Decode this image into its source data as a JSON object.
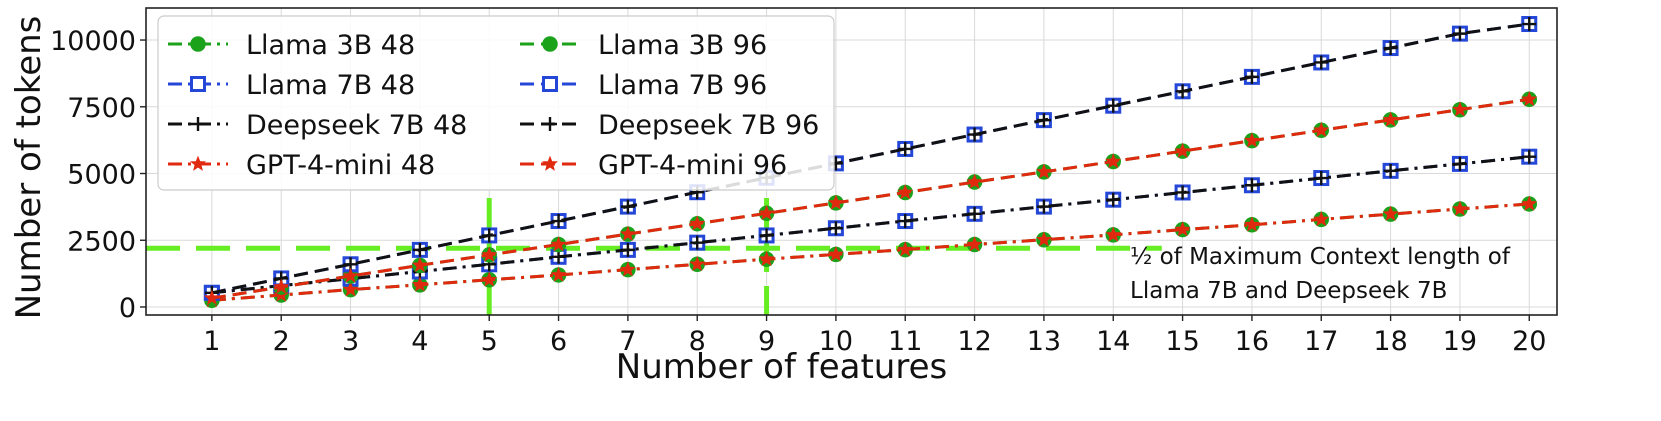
{
  "chart_data": {
    "type": "line",
    "xlabel": "Number of features",
    "ylabel": "Number of tokens",
    "x": [
      1,
      2,
      3,
      4,
      5,
      6,
      7,
      8,
      9,
      10,
      11,
      12,
      13,
      14,
      15,
      16,
      17,
      18,
      19,
      20
    ],
    "xlim": [
      0.05,
      20.4
    ],
    "ylim": [
      -300,
      11200
    ],
    "yticks": [
      0,
      2500,
      5000,
      7500,
      10000
    ],
    "grid": true,
    "legend_placement": "top-left",
    "legend_columns": 2,
    "series": [
      {
        "name": "Llama 3B 48",
        "color": "#1aa21a",
        "linestyle": "dashdot",
        "marker": "circle",
        "values": [
          250,
          450,
          650,
          830,
          1020,
          1200,
          1400,
          1600,
          1790,
          1970,
          2150,
          2340,
          2520,
          2700,
          2900,
          3080,
          3280,
          3480,
          3670,
          3860
        ]
      },
      {
        "name": "Llama 7B 48",
        "color": "#2447d8",
        "linestyle": "dashdot",
        "marker": "square",
        "values": [
          530,
          800,
          1060,
          1330,
          1600,
          1880,
          2140,
          2410,
          2680,
          2950,
          3220,
          3490,
          3760,
          4020,
          4290,
          4560,
          4830,
          5100,
          5360,
          5630
        ]
      },
      {
        "name": "Deepseek 7B 48",
        "color": "#111111",
        "linestyle": "dashdot",
        "marker": "plus",
        "values": [
          530,
          800,
          1060,
          1330,
          1600,
          1880,
          2140,
          2410,
          2680,
          2950,
          3220,
          3490,
          3760,
          4020,
          4290,
          4560,
          4830,
          5100,
          5360,
          5630
        ]
      },
      {
        "name": "GPT-4-mini 48",
        "color": "#e02a10",
        "linestyle": "dashdot",
        "marker": "star",
        "values": [
          250,
          450,
          650,
          830,
          1020,
          1200,
          1400,
          1600,
          1790,
          1970,
          2150,
          2340,
          2520,
          2700,
          2900,
          3080,
          3280,
          3480,
          3670,
          3860
        ]
      },
      {
        "name": "Llama 3B 96",
        "color": "#1aa21a",
        "linestyle": "dashed",
        "marker": "circle",
        "values": [
          330,
          750,
          1160,
          1560,
          1950,
          2340,
          2730,
          3120,
          3510,
          3900,
          4290,
          4680,
          5060,
          5450,
          5840,
          6230,
          6620,
          7010,
          7390,
          7780
        ]
      },
      {
        "name": "Llama 7B 96",
        "color": "#2447d8",
        "linestyle": "dashed",
        "marker": "square",
        "values": [
          530,
          1070,
          1600,
          2140,
          2680,
          3220,
          3760,
          4300,
          4840,
          5380,
          5920,
          6460,
          7000,
          7540,
          8080,
          8620,
          9160,
          9700,
          10240,
          10600
        ]
      },
      {
        "name": "Deepseek 7B 96",
        "color": "#111111",
        "linestyle": "dashed",
        "marker": "plus",
        "values": [
          530,
          1070,
          1600,
          2140,
          2680,
          3220,
          3760,
          4300,
          4840,
          5380,
          5920,
          6460,
          7000,
          7540,
          8080,
          8620,
          9160,
          9700,
          10240,
          10600
        ]
      },
      {
        "name": "GPT-4-mini 96",
        "color": "#e02a10",
        "linestyle": "dashed",
        "marker": "star",
        "values": [
          330,
          750,
          1160,
          1560,
          1950,
          2340,
          2730,
          3120,
          3510,
          3900,
          4290,
          4680,
          5060,
          5450,
          5840,
          6230,
          6620,
          7010,
          7390,
          7780
        ]
      }
    ],
    "reference_lines": {
      "color": "#66ee22",
      "horizontal_y": 2200,
      "horizontal_x_end": 14.7,
      "vertical_x": [
        5,
        9
      ]
    },
    "annotation": {
      "lines": [
        "½ of Maximum Context length of",
        "Llama 7B and Deepseek 7B"
      ]
    }
  }
}
